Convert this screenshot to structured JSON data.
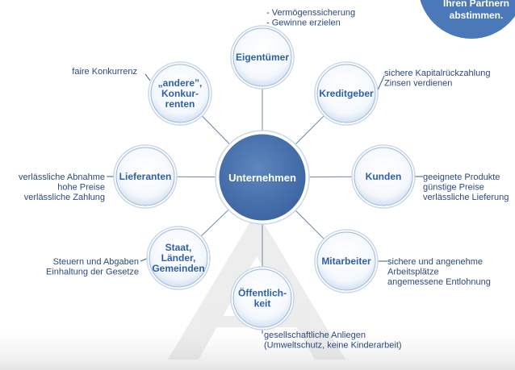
{
  "center": {
    "label": "Unternehmen"
  },
  "corner_callout": {
    "lines": [
      "Ihren Partnern",
      "abstimmen."
    ]
  },
  "nodes": [
    {
      "id": "eigentuemer",
      "label_lines": [
        "Eigentümer"
      ],
      "details": [
        "- Vermögenssicherung",
        "- Gewinne erzielen"
      ]
    },
    {
      "id": "kreditgeber",
      "label_lines": [
        "Kreditgeber"
      ],
      "details": [
        "sichere Kapitalrückzahlung",
        "Zinsen verdienen"
      ]
    },
    {
      "id": "kunden",
      "label_lines": [
        "Kunden"
      ],
      "details": [
        "geeignete Produkte",
        "günstige Preise",
        "verlässliche Lieferung"
      ]
    },
    {
      "id": "mitarbeiter",
      "label_lines": [
        "Mitarbeiter"
      ],
      "details": [
        "sichere und angenehme",
        "Arbeitsplätze",
        "angemessene Entlohnung"
      ]
    },
    {
      "id": "oeffentlichkeit",
      "label_lines": [
        "Öffentlich-",
        "keit"
      ],
      "details": [
        "gesellschaftliche Anliegen",
        "(Umweltschutz, keine Kinderarbeit)"
      ]
    },
    {
      "id": "staat",
      "label_lines": [
        "Staat,",
        "Länder,",
        "Gemeinden"
      ],
      "details": [
        "Steuern und Abgaben",
        "Einhaltung der Gesetze"
      ]
    },
    {
      "id": "lieferanten",
      "label_lines": [
        "Lieferanten"
      ],
      "details": [
        "verlässliche Abnahme",
        "hohe Preise",
        "verlässliche Zahlung"
      ]
    },
    {
      "id": "konkurrenten",
      "label_lines": [
        "„andere”,",
        "Konkur-",
        "renten"
      ],
      "details": [
        "faire Konkurrenz"
      ]
    }
  ]
}
